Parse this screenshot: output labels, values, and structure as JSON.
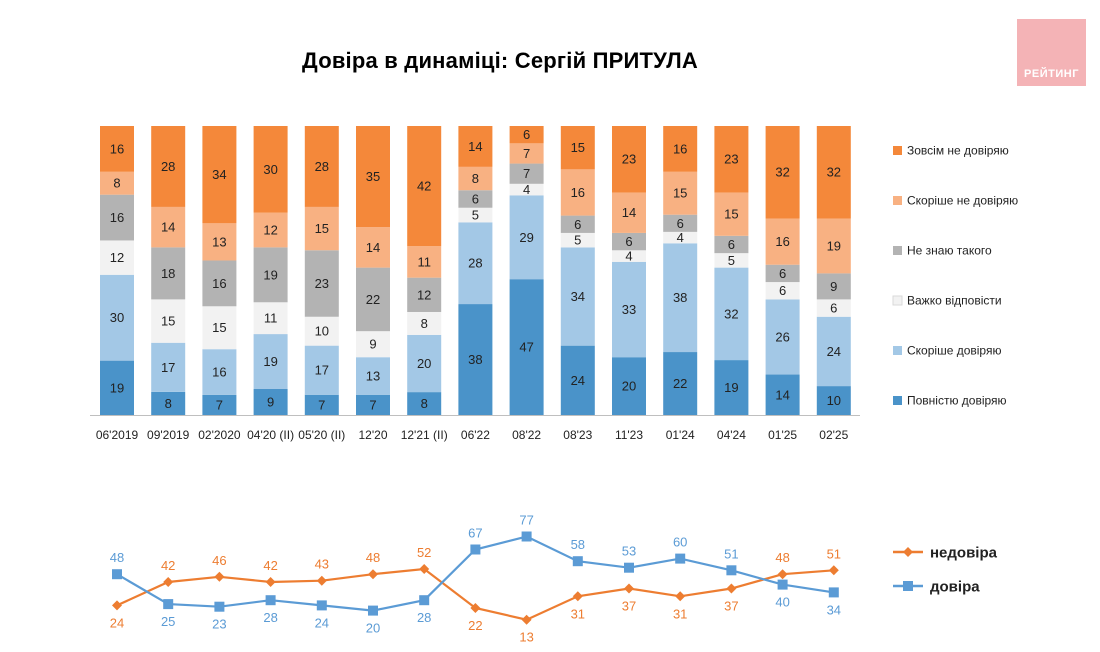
{
  "title": "Довіра в динаміці: Сергій ПРИТУЛА",
  "logo": {
    "text": "РЕЙТИНГ"
  },
  "colors": {
    "full_distrust": "#f4883a",
    "rather_distrust": "#f8b182",
    "dont_know": "#b3b3b3",
    "hard_to_say": "#f2f2f2",
    "rather_trust": "#a3c8e6",
    "full_trust": "#4a93c9",
    "line_distrust": "#ed7d31",
    "line_trust": "#5b9bd5",
    "logo_bg": "#f4b3b6"
  },
  "chart_data": [
    {
      "type": "bar",
      "stacked": true,
      "categories": [
        "06'2019",
        "09'2019",
        "02'2020",
        "04'20 (II)",
        "05'20 (II)",
        "12'20",
        "12'21 (II)",
        "06'22",
        "08'22",
        "08'23",
        "11'23",
        "01'24",
        "04'24",
        "01'25",
        "02'25"
      ],
      "series": [
        {
          "name": "Повністю довіряю",
          "color": "#4a93c9",
          "values": [
            19,
            8,
            7,
            9,
            7,
            7,
            8,
            38,
            47,
            24,
            20,
            22,
            19,
            14,
            10
          ]
        },
        {
          "name": "Скоріше довіряю",
          "color": "#a3c8e6",
          "values": [
            30,
            17,
            16,
            19,
            17,
            13,
            20,
            28,
            29,
            34,
            33,
            38,
            32,
            26,
            24
          ]
        },
        {
          "name": "Важко відповісти",
          "color": "#f2f2f2",
          "values": [
            12,
            15,
            15,
            11,
            10,
            9,
            8,
            5,
            4,
            5,
            4,
            4,
            5,
            6,
            6
          ]
        },
        {
          "name": "Не знаю такого",
          "color": "#b3b3b3",
          "values": [
            16,
            18,
            16,
            19,
            23,
            22,
            12,
            6,
            7,
            6,
            6,
            6,
            6,
            6,
            9
          ]
        },
        {
          "name": "Скоріше не довіряю",
          "color": "#f8b182",
          "values": [
            8,
            14,
            13,
            12,
            15,
            14,
            11,
            8,
            7,
            16,
            14,
            15,
            15,
            16,
            19
          ]
        },
        {
          "name": "Зовсім не довіряю",
          "color": "#f4883a",
          "values": [
            16,
            28,
            34,
            30,
            28,
            35,
            42,
            14,
            6,
            15,
            23,
            16,
            23,
            32,
            32
          ]
        }
      ],
      "legend": "right"
    },
    {
      "type": "line",
      "categories": [
        "06'2019",
        "09'2019",
        "02'2020",
        "04'20 (II)",
        "05'20 (II)",
        "12'20",
        "12'21 (II)",
        "06'22",
        "08'22",
        "08'23",
        "11'23",
        "01'24",
        "04'24",
        "01'25",
        "02'25"
      ],
      "series": [
        {
          "name": "недовіра",
          "color": "#ed7d31",
          "marker": "diamond",
          "values": [
            24,
            42,
            46,
            42,
            43,
            48,
            52,
            22,
            13,
            31,
            37,
            31,
            37,
            48,
            51
          ]
        },
        {
          "name": "довіра",
          "color": "#5b9bd5",
          "marker": "square",
          "values": [
            48,
            25,
            23,
            28,
            24,
            20,
            28,
            67,
            77,
            58,
            53,
            60,
            51,
            40,
            34
          ]
        }
      ],
      "legend": "right"
    }
  ]
}
